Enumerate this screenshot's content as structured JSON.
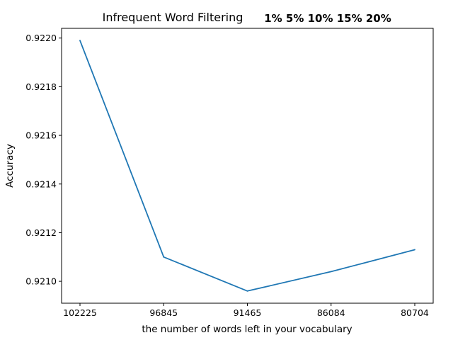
{
  "chart_data": {
    "type": "line",
    "title": "Infrequent Word Filtering",
    "subtitle": "1% 5% 10% 15% 20%",
    "xlabel": "the number of words left in your vocabulary",
    "ylabel": "Accuracy",
    "categories": [
      "102225",
      "96845",
      "91465",
      "86084",
      "80704"
    ],
    "series": [
      {
        "values": [
          0.92199,
          0.9211,
          0.92096,
          0.92104,
          0.92113
        ]
      }
    ],
    "yticks": [
      "0.9210",
      "0.9212",
      "0.9214",
      "0.9216",
      "0.9218",
      "0.9220"
    ],
    "ylim": [
      0.92091,
      0.92204
    ],
    "grid": false,
    "line_color": "#1f77b4"
  }
}
